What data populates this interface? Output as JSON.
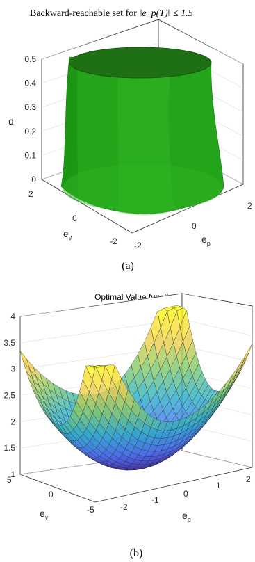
{
  "chart_data": [
    {
      "type": "surface",
      "panel_label": "(a)",
      "title_text": "Backward-reachable set for ",
      "title_math": "‖e_p(T)‖ ≤ 1.5",
      "xlabel_base": "e",
      "xlabel_sub": "p",
      "ylabel_base": "e",
      "ylabel_sub": "v",
      "zlabel": "d",
      "xlim": [
        -2,
        2
      ],
      "ylim": [
        -2,
        2
      ],
      "zlim": [
        0,
        0.5
      ],
      "xticks": [
        "-2",
        "0",
        "2"
      ],
      "yticks": [
        "-2",
        "0",
        "2"
      ],
      "zticks": [
        "0",
        "0.1",
        "0.2",
        "0.3",
        "0.4",
        "0.5"
      ],
      "surface_color": "#22a81a",
      "cap_color": "#1e6d14",
      "grid": true,
      "shape": "rounded-square cylinder, half-width about 1.7 at d=0.5 narrowing to about 1.5 near d=0.3, flaring to about 1.7 at d=0"
    },
    {
      "type": "surface",
      "panel_label": "(b)",
      "title": "Optimal Value function",
      "xlabel_base": "e",
      "xlabel_sub": "p",
      "ylabel_base": "e",
      "ylabel_sub": "v",
      "xlim": [
        -2.5,
        2.5
      ],
      "ylim": [
        -6,
        6
      ],
      "zlim": [
        1,
        4
      ],
      "xticks": [
        "-2",
        "-1",
        "0",
        "1",
        "2"
      ],
      "yticks": [
        "-5",
        "0",
        "5"
      ],
      "zticks": [
        "1",
        "1.5",
        "2",
        "2.5",
        "3",
        "3.5",
        "4"
      ],
      "grid": true,
      "colormap": [
        "#3e26a8",
        "#4a70f4",
        "#2ab0c9",
        "#85cb6a",
        "#f9cf4b",
        "#f9fb14"
      ],
      "z_min": 1.05,
      "z_max": 3.55,
      "z_at_corners": {
        "ep_-2.5_ev_-6": 2.6,
        "ep_2.5_ev_6": 3.55,
        "ep_-2.5_ev_6": 2.6,
        "ep_2.5_ev_-6": 2.6
      }
    }
  ]
}
